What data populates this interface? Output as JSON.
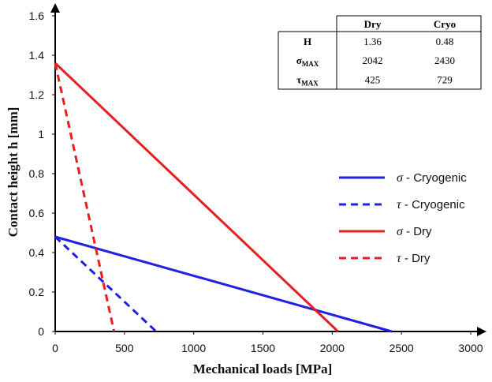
{
  "chart_data": {
    "type": "line",
    "xlabel": "Mechanical loads [MPa]",
    "ylabel": "Contact height h [mm]",
    "xlim": [
      0,
      3000
    ],
    "ylim": [
      0,
      1.6
    ],
    "x_ticks": [
      0,
      500,
      1000,
      1500,
      2000,
      2500,
      3000
    ],
    "y_ticks": [
      0,
      0.2,
      0.4,
      0.6,
      0.8,
      1,
      1.2,
      1.4,
      1.6
    ],
    "x_tick_labels": [
      "0",
      "500",
      "1000",
      "1500",
      "2000",
      "2500",
      "3000"
    ],
    "y_tick_labels": [
      "0",
      "0.2",
      "0.4",
      "0.6",
      "0.8",
      "1",
      "1.2",
      "1.4",
      "1.6"
    ],
    "grid": false,
    "legend_position": "right",
    "series": [
      {
        "symbol": "σ",
        "label": "Cryogenic",
        "color": "#1f1fe6",
        "style": "solid",
        "x": [
          0,
          2430
        ],
        "y": [
          0.48,
          0
        ]
      },
      {
        "symbol": "τ",
        "label": "Cryogenic",
        "color": "#1f1fe6",
        "style": "dashed",
        "x": [
          0,
          729
        ],
        "y": [
          0.48,
          0
        ]
      },
      {
        "symbol": "σ",
        "label": "Dry",
        "color": "#e61f1f",
        "style": "solid",
        "x": [
          0,
          2042
        ],
        "y": [
          1.36,
          0
        ]
      },
      {
        "symbol": "τ",
        "label": "Dry",
        "color": "#e61f1f",
        "style": "dashed",
        "x": [
          0,
          425
        ],
        "y": [
          1.36,
          0
        ]
      }
    ],
    "table": {
      "columns": [
        "",
        "Dry",
        "Cryo"
      ],
      "rows": [
        {
          "label": "H",
          "sub": "",
          "values": [
            "1.36",
            "0.48"
          ]
        },
        {
          "label": "σ",
          "sub": "MAX",
          "values": [
            "2042",
            "2430"
          ]
        },
        {
          "label": "τ",
          "sub": "MAX",
          "values": [
            "425",
            "729"
          ]
        }
      ]
    }
  }
}
